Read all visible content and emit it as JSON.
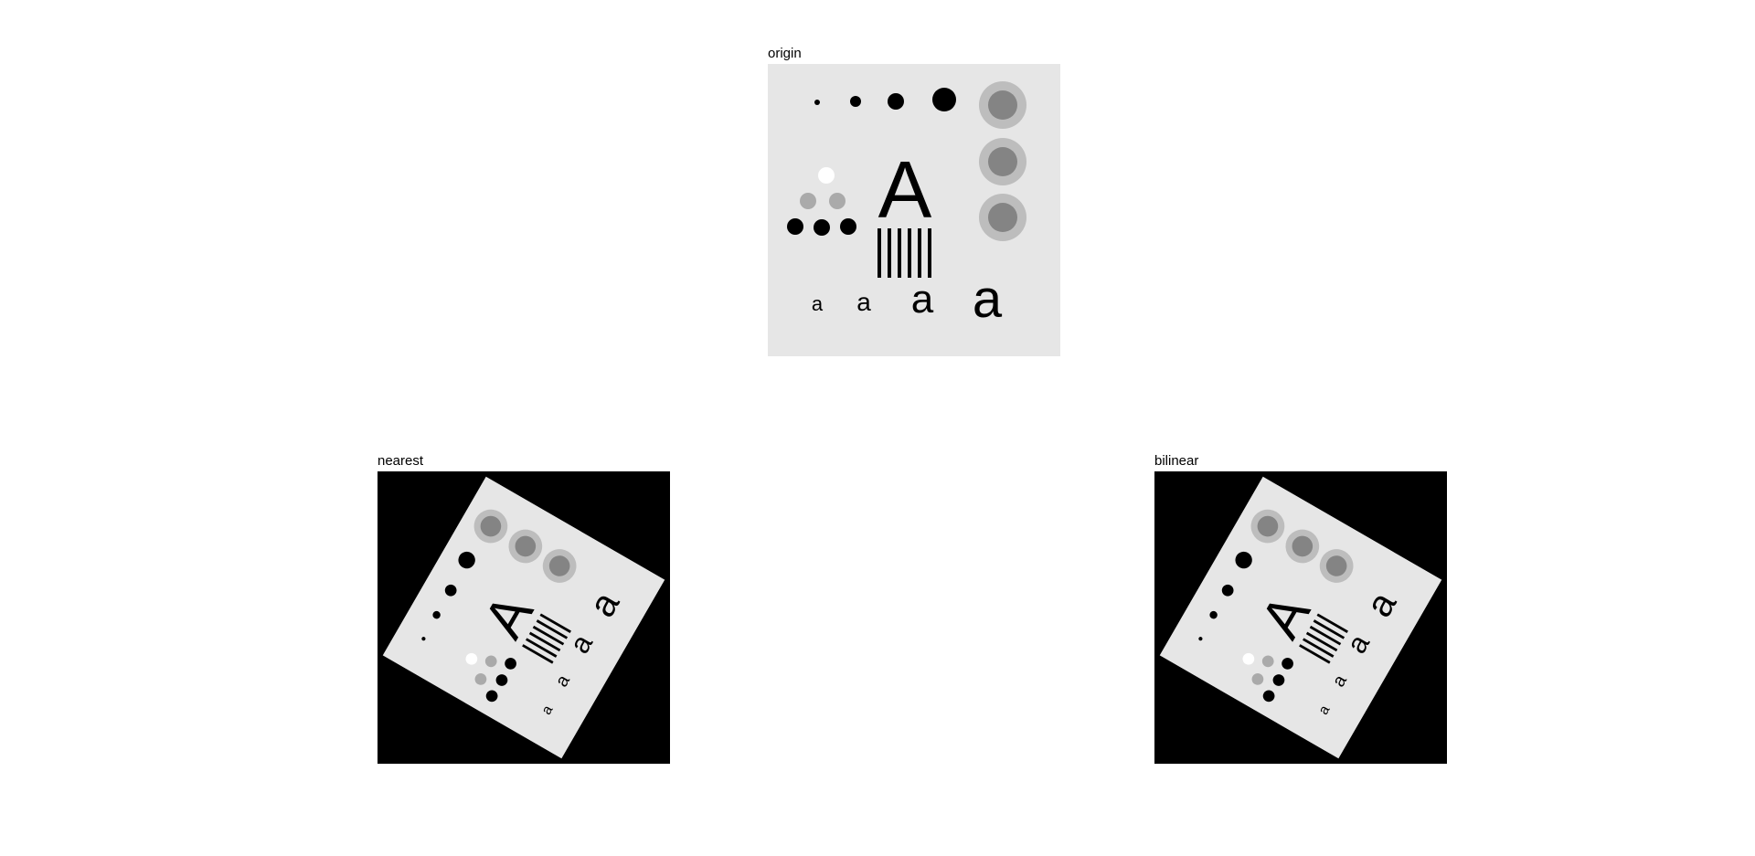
{
  "figure": {
    "panels": [
      {
        "title": "origin"
      },
      {
        "title": "nearest"
      },
      {
        "title": "bilinear"
      }
    ]
  },
  "test_pattern": {
    "large_letter": "A",
    "small_letter": "a"
  },
  "colors": {
    "image_background": "#e6e6e6",
    "fill_area": "#000000",
    "ink": "#000000",
    "mid_gray": "#aaaaaa",
    "white_dot": "#ffffff"
  }
}
